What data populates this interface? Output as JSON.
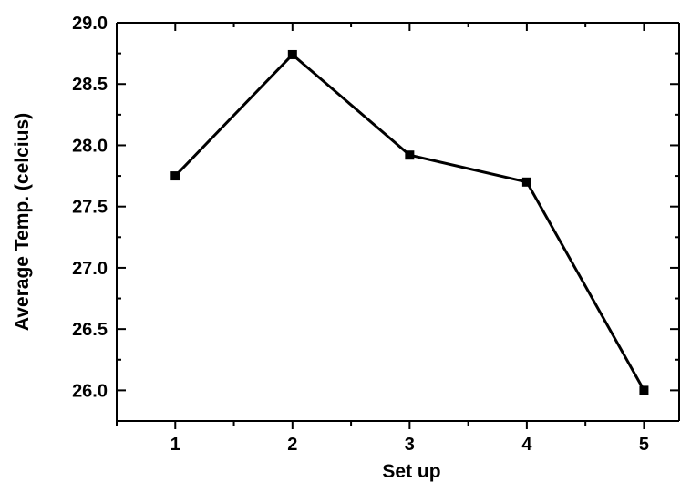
{
  "chart_data": {
    "type": "line",
    "title": "",
    "xlabel": "Set up",
    "ylabel": "Average Temp. (celcius)",
    "x": [
      1,
      2,
      3,
      4,
      5
    ],
    "x_tick_labels": [
      "1",
      "2",
      "3",
      "4",
      "5"
    ],
    "y_tick_labels": [
      "26.0",
      "26.5",
      "27.0",
      "27.5",
      "28.0",
      "28.5",
      "29.0"
    ],
    "ylim": [
      25.75,
      29.0
    ],
    "xlim": [
      0.5,
      5.3
    ],
    "series": [
      {
        "values": [
          27.75,
          28.74,
          27.92,
          27.7,
          26.0
        ],
        "color": "#000000",
        "marker": "square"
      }
    ],
    "grid": false,
    "legend": "none"
  }
}
